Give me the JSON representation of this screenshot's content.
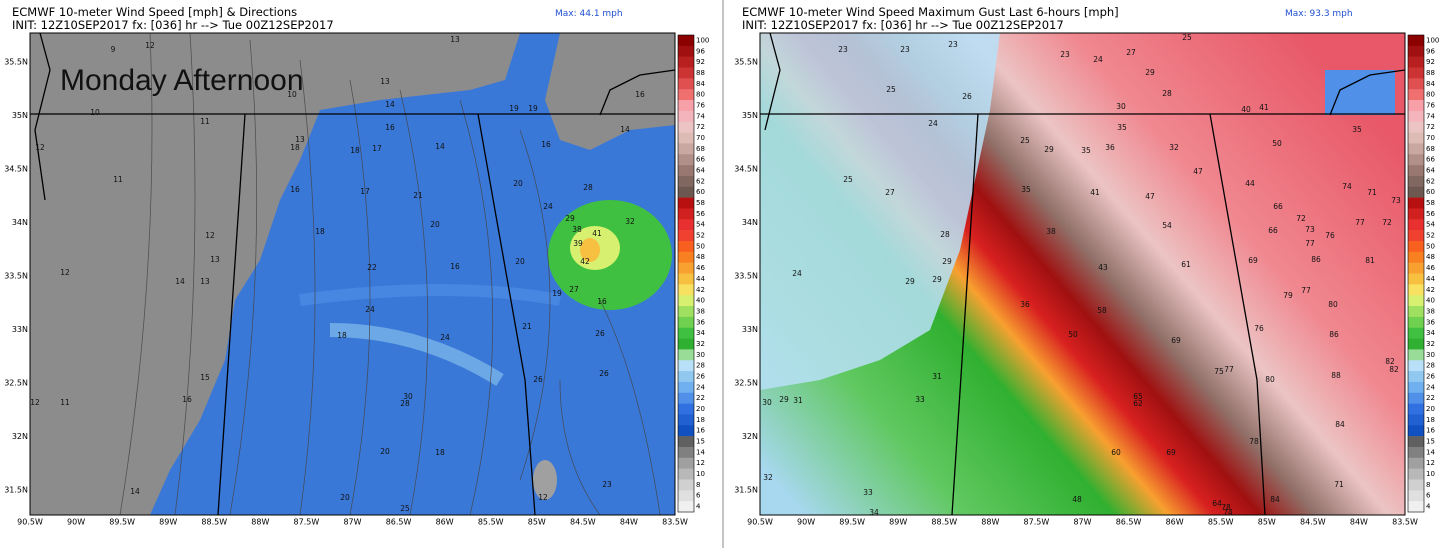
{
  "colorbar": {
    "labels": [
      100,
      96,
      92,
      88,
      84,
      80,
      76,
      74,
      72,
      70,
      68,
      66,
      64,
      62,
      60,
      58,
      56,
      54,
      52,
      50,
      48,
      46,
      44,
      42,
      40,
      38,
      36,
      34,
      32,
      30,
      28,
      26,
      24,
      22,
      20,
      18,
      16,
      15,
      14,
      12,
      10,
      8,
      6,
      4
    ],
    "colors": [
      "#8b0000",
      "#a01010",
      "#b82020",
      "#cc3333",
      "#e05050",
      "#f07070",
      "#f8a0a8",
      "#f4b4bc",
      "#ecc4c4",
      "#dcbcb4",
      "#c8a8a0",
      "#b09088",
      "#987870",
      "#806860",
      "#6c5850",
      "#b81010",
      "#d02020",
      "#e83030",
      "#f04030",
      "#f86020",
      "#f88020",
      "#f8a030",
      "#f8c040",
      "#f8e060",
      "#d8f070",
      "#a0e060",
      "#70d050",
      "#40c040",
      "#30b030",
      "#98dc98",
      "#b8e0f8",
      "#90c8f0",
      "#70b0f0",
      "#5090e8",
      "#3070e0",
      "#2060d0",
      "#1050c0",
      "#606060",
      "#808080",
      "#a0a0a0",
      "#b8b8b8",
      "#d0d0d0",
      "#e0e0e0",
      "#f0f0f0"
    ]
  },
  "panels": [
    {
      "title": "ECMWF 10-meter Wind Speed [mph] & Directions",
      "init": "INIT: 12Z10SEP2017 fx: [036] hr --> Tue 00Z12SEP2017",
      "max": "Max: 44.1 mph",
      "overlay": "Monday Afternoon",
      "lat_labels": [
        "35.5N",
        "35N",
        "34.5N",
        "34N",
        "33.5N",
        "33N",
        "32.5N",
        "32N",
        "31.5N"
      ],
      "lon_labels": [
        "90.5W",
        "90W",
        "89.5W",
        "89W",
        "88.5W",
        "88W",
        "87.5W",
        "87W",
        "86.5W",
        "86W",
        "85.5W",
        "85W",
        "84.5W",
        "84W",
        "83.5W"
      ],
      "map_labels": [
        12,
        11,
        12,
        13,
        14,
        13,
        12,
        12,
        11,
        15,
        16,
        14,
        18,
        22,
        24,
        18,
        20,
        24,
        16,
        30,
        28,
        20,
        18,
        20,
        25,
        20,
        24,
        20,
        29,
        38,
        41,
        39,
        42,
        32,
        28,
        19,
        27,
        16,
        26,
        21,
        26,
        26,
        23,
        12,
        19,
        19,
        16,
        16,
        17,
        18,
        18,
        16,
        17,
        21,
        14,
        16,
        14,
        13,
        14,
        13,
        13,
        10,
        11,
        12,
        9,
        10
      ]
    },
    {
      "title": "ECMWF 10-meter Wind Speed Maximum Gust Last 6-hours [mph]",
      "init": "INIT: 12Z10SEP2017 fx: [036] hr --> Tue 00Z12SEP2017",
      "max": "Max: 93.3 mph",
      "lat_labels": [
        "35.5N",
        "35N",
        "34.5N",
        "34N",
        "33.5N",
        "33N",
        "32.5N",
        "32N",
        "31.5N"
      ],
      "lon_labels": [
        "90.5W",
        "90W",
        "89.5W",
        "89W",
        "88.5W",
        "88W",
        "87.5W",
        "87W",
        "86.5W",
        "86W",
        "85.5W",
        "85W",
        "84.5W",
        "84W",
        "83.5W"
      ],
      "map_labels": [
        23,
        23,
        23,
        25,
        27,
        23,
        24,
        29,
        28,
        25,
        26,
        30,
        40,
        41,
        35,
        50,
        35,
        24,
        25,
        29,
        35,
        36,
        32,
        25,
        27,
        35,
        41,
        47,
        47,
        44,
        74,
        71,
        66,
        72,
        73,
        76,
        77,
        72,
        73,
        77,
        54,
        66,
        38,
        28,
        29,
        24,
        29,
        29,
        43,
        61,
        69,
        86,
        81,
        79,
        77,
        80,
        36,
        58,
        50,
        76,
        86,
        69,
        31,
        75,
        77,
        80,
        88,
        82,
        82,
        29,
        31,
        30,
        33,
        65,
        62,
        84,
        69,
        78,
        60,
        71,
        32,
        33,
        48,
        84,
        78,
        64,
        74,
        34
      ]
    }
  ]
}
